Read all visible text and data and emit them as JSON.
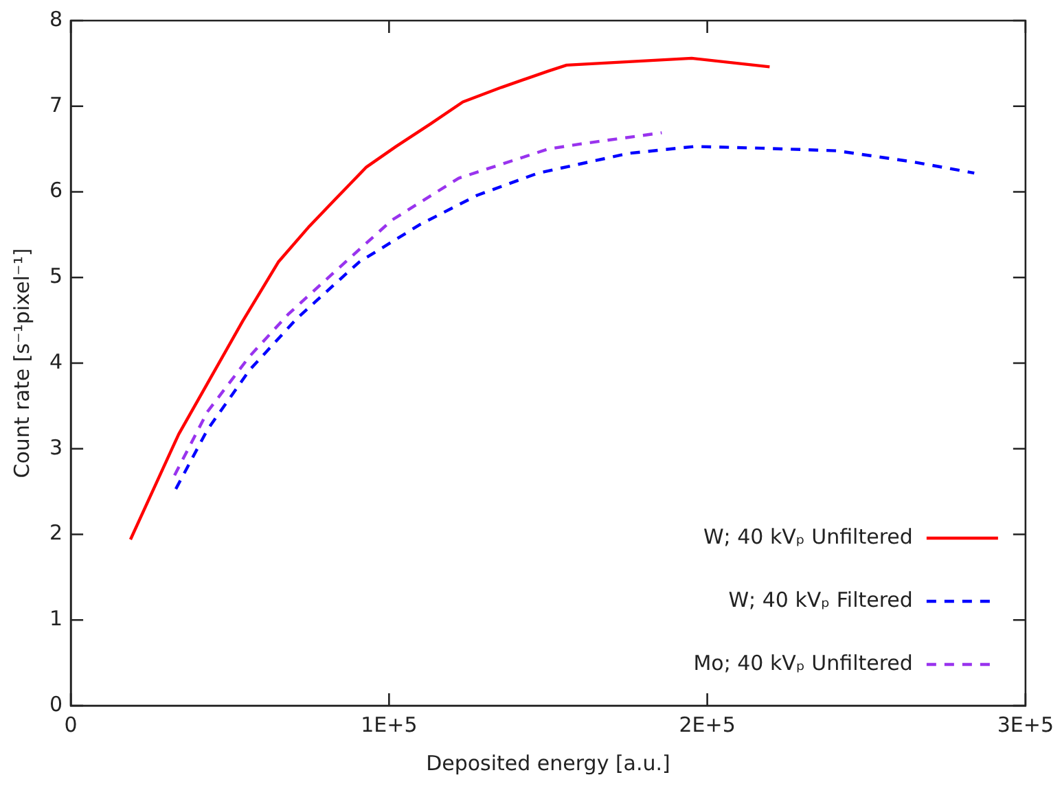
{
  "chart_data": {
    "type": "line",
    "xlabel": "Deposited energy [a.u.]",
    "ylabel": "Count rate [s⁻¹pixel⁻¹]",
    "xlim": [
      0,
      300000
    ],
    "xticks": [
      0,
      {
        "value": 100000,
        "label": "1E+5"
      },
      {
        "value": 200000,
        "label": "2E+5"
      },
      {
        "value": 300000,
        "label": "3E+5"
      }
    ],
    "ylim": [
      0,
      8
    ],
    "yticks": [
      0,
      1,
      2,
      3,
      4,
      5,
      6,
      7,
      8
    ],
    "grid": false,
    "legend": "bottom right",
    "marker": "none",
    "series": [
      {
        "name": "W; 40 kVₚ Unfiltered",
        "color": "#ff0000",
        "line_style": "solid",
        "x": [
          18750,
          33900,
          42900,
          54000,
          65200,
          75000,
          83000,
          92900,
          102200,
          112900,
          123200,
          135300,
          150000,
          155800,
          195100,
          219600
        ],
        "values": [
          1.94,
          3.17,
          3.76,
          4.49,
          5.18,
          5.6,
          5.91,
          6.29,
          6.53,
          6.79,
          7.05,
          7.22,
          7.41,
          7.48,
          7.56,
          7.46
        ]
      },
      {
        "name": "W; 40 kVₚ Filtered",
        "color": "#0000ff",
        "line_style": "dashed",
        "x": [
          33000,
          42900,
          56200,
          71000,
          90600,
          109800,
          127700,
          146900,
          175400,
          196000,
          217000,
          240600,
          264700,
          283900
        ],
        "values": [
          2.53,
          3.22,
          3.92,
          4.52,
          5.18,
          5.62,
          5.96,
          6.22,
          6.45,
          6.53,
          6.51,
          6.48,
          6.35,
          6.22
        ]
      },
      {
        "name": "Mo; 40 kVₚ Unfiltered",
        "color": "#9933ee",
        "line_style": "dashed",
        "x": [
          32600,
          42900,
          56200,
          68300,
          83000,
          100900,
          121900,
          150000,
          160300,
          185700
        ],
        "values": [
          2.69,
          3.43,
          4.08,
          4.57,
          5.07,
          5.67,
          6.16,
          6.5,
          6.56,
          6.69
        ]
      }
    ]
  }
}
